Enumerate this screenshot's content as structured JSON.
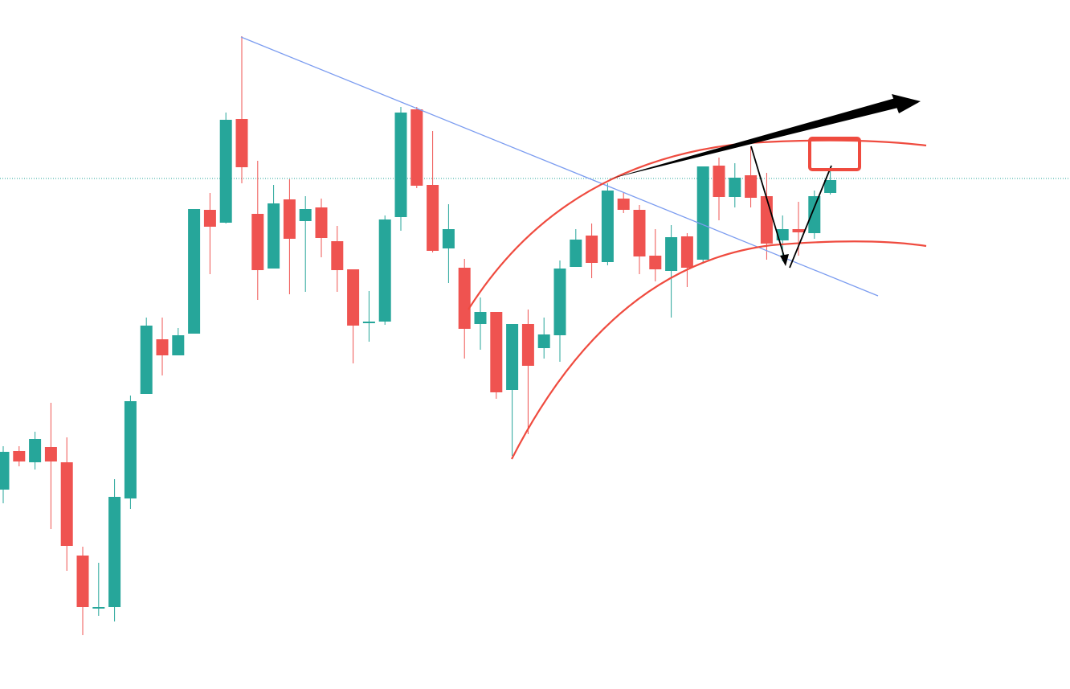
{
  "chart_data": {
    "type": "candlestick",
    "up_color": "#26a69a",
    "down_color": "#ef5350",
    "ylim": [
      0,
      857
    ],
    "open": [
      248,
      296,
      282,
      301,
      282,
      166,
      100,
      102,
      237,
      367,
      435,
      415,
      442,
      596,
      580,
      709,
      591,
      523,
      609,
      582,
      599,
      557,
      522,
      455,
      457,
      587,
      721,
      627,
      548,
      524,
      454,
      469,
      372,
      454,
      424,
      440,
      525,
      564,
      531,
      610,
      596,
      539,
      520,
      563,
      534,
      651,
      612,
      639,
      613,
      558,
      572,
      567,
      617
    ],
    "high": [
      302,
      302,
      320,
      356,
      313,
      177,
      157,
      261,
      365,
      462,
      462,
      449,
      597,
      617,
      717,
      812,
      657,
      627,
      634,
      613,
      610,
      576,
      522,
      495,
      589,
      724,
      724,
      694,
      603,
      535,
      487,
      469,
      454,
      472,
      462,
      533,
      572,
      579,
      629,
      617,
      602,
      572,
      577,
      567,
      650,
      661,
      654,
      675,
      642,
      589,
      606,
      620,
      645
    ],
    "low": [
      231,
      277,
      273,
      199,
      147,
      67,
      91,
      84,
      224,
      367,
      390,
      415,
      442,
      516,
      579,
      629,
      484,
      523,
      491,
      494,
      537,
      494,
      405,
      432,
      453,
      570,
      623,
      543,
      505,
      411,
      422,
      361,
      290,
      317,
      411,
      407,
      525,
      511,
      527,
      592,
      516,
      507,
      462,
      500,
      529,
      583,
      599,
      599,
      534,
      532,
      539,
      560,
      615
    ],
    "close": [
      295,
      283,
      311,
      283,
      178,
      102,
      102,
      239,
      358,
      452,
      415,
      440,
      597,
      575,
      708,
      649,
      521,
      604,
      560,
      597,
      561,
      521,
      452,
      457,
      584,
      717,
      626,
      545,
      572,
      448,
      469,
      369,
      454,
      402,
      441,
      523,
      559,
      530,
      620,
      596,
      538,
      522,
      562,
      524,
      650,
      612,
      636,
      611,
      554,
      572,
      568,
      613,
      633
    ]
  }
}
